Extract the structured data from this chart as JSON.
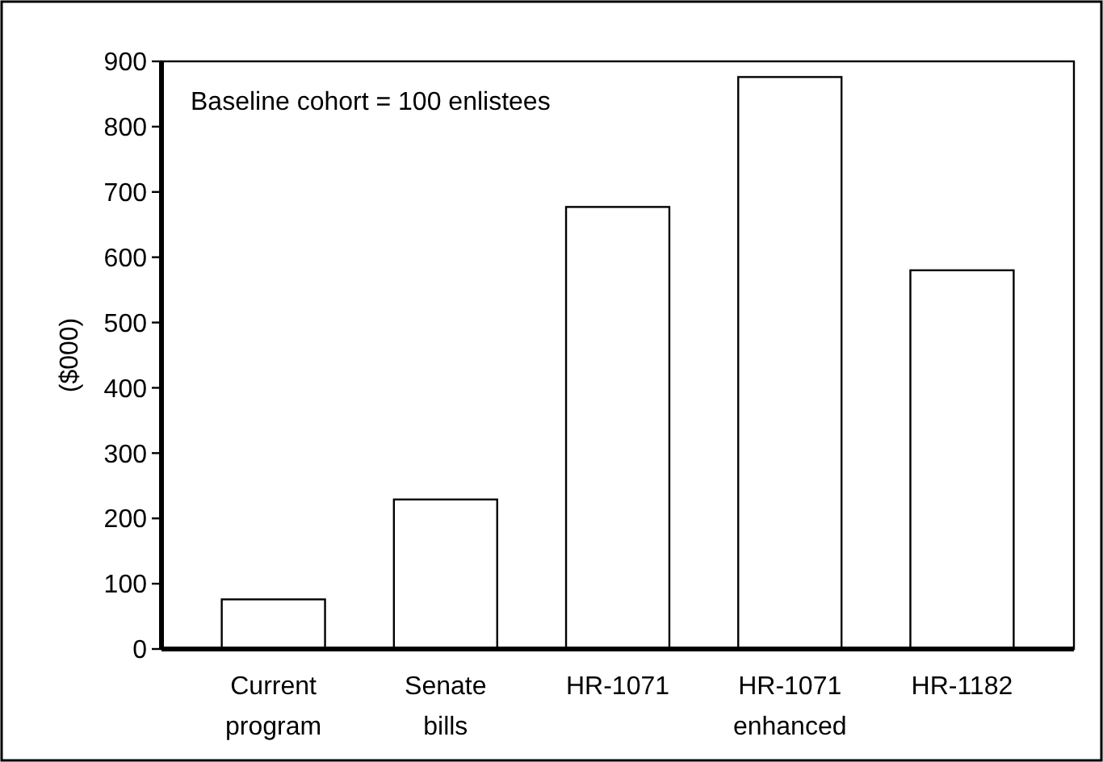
{
  "chart_data": {
    "type": "bar",
    "ylabel": "($000)",
    "categories": [
      "Current\nprogram",
      "Senate\nbills",
      "HR-1071",
      "HR-1071\nenhanced",
      "HR-1182"
    ],
    "values": [
      76,
      229,
      677,
      876,
      580
    ],
    "color": "#ffffff",
    "ylim": [
      0,
      900
    ],
    "yticks": [
      0,
      100,
      200,
      300,
      400,
      500,
      600,
      700,
      800,
      900
    ],
    "grid": false,
    "annotations": [
      "Baseline cohort = 100 enlistees"
    ]
  }
}
